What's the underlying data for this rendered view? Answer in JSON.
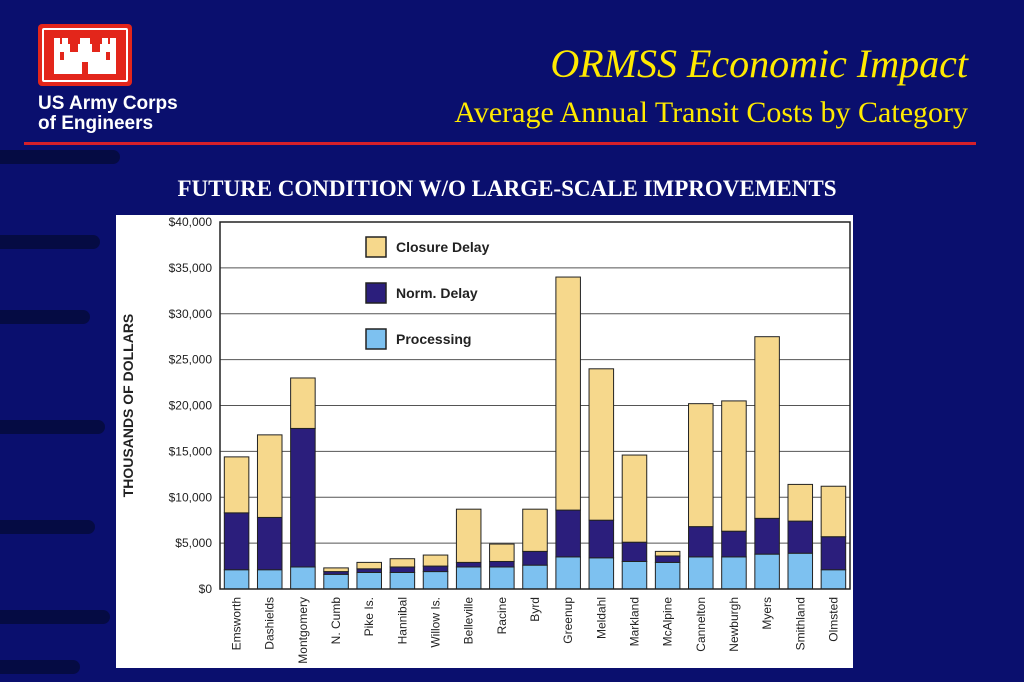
{
  "org_name_line1": "US Army Corps",
  "org_name_line2": "of Engineers",
  "title": "ORMSS Economic Impact",
  "subtitle": "Average Annual Transit Costs by Category",
  "heading": "FUTURE CONDITION W/O LARGE-SCALE IMPROVEMENTS",
  "colors": {
    "background": "#0a0f6e",
    "title": "#ffea00",
    "rule": "#d6202a",
    "logo": "#e3261b",
    "closure_delay": "#f6d88c",
    "norm_delay": "#2b1e7c",
    "processing": "#7dc1f0"
  },
  "chart_data": {
    "type": "bar",
    "stacked": true,
    "ylabel": "THOUSANDS OF DOLLARS",
    "xlabel": "",
    "ylim": [
      0,
      40000
    ],
    "y_ticks": [
      "$0",
      "$5,000",
      "$10,000",
      "$15,000",
      "$20,000",
      "$25,000",
      "$30,000",
      "$35,000",
      "$40,000"
    ],
    "grid": true,
    "legend_position": "top-left",
    "categories": [
      "Emsworth",
      "Dashields",
      "Montgomery",
      "N. Cumb",
      "Pike Is.",
      "Hannibal",
      "Willow Is.",
      "Belleville",
      "Racine",
      "Byrd",
      "Greenup",
      "Meldahl",
      "Markland",
      "McAlpine",
      "Cannelton",
      "Newburgh",
      "Myers",
      "Smithland",
      "Olmsted"
    ],
    "series": [
      {
        "name": "Processing",
        "values": [
          2100,
          2100,
          2400,
          1600,
          1800,
          1800,
          1900,
          2400,
          2400,
          2600,
          3500,
          3400,
          3000,
          2900,
          3500,
          3500,
          3800,
          3900,
          2100
        ]
      },
      {
        "name": "Norm. Delay",
        "values": [
          6200,
          5700,
          15100,
          300,
          400,
          600,
          600,
          500,
          600,
          1500,
          5100,
          4100,
          2100,
          700,
          3300,
          2800,
          3900,
          3500,
          3600
        ]
      },
      {
        "name": "Closure Delay",
        "values": [
          6100,
          9000,
          5500,
          400,
          700,
          900,
          1200,
          5800,
          1900,
          4600,
          25400,
          16500,
          9500,
          500,
          13400,
          14200,
          19800,
          4000,
          5500
        ]
      }
    ]
  }
}
